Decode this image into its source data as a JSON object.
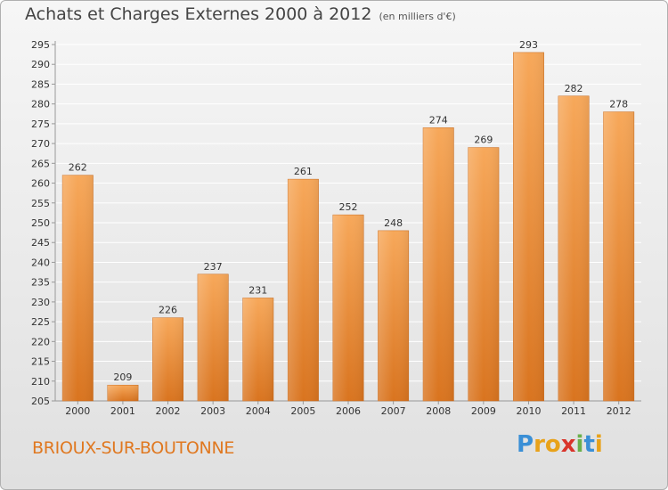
{
  "title": "Achats et Charges Externes 2000 à 2012",
  "subtitle": "(en milliers d'€)",
  "city": "BRIOUX-SUR-BOUTONNE",
  "logo": {
    "letters": [
      "P",
      "r",
      "o",
      "x",
      "i",
      "t",
      "i"
    ],
    "colors": [
      "#3a8fd6",
      "#e8a21a",
      "#e8a21a",
      "#d9342b",
      "#6ab04c",
      "#3a8fd6",
      "#e8a21a"
    ]
  },
  "colors": {
    "bar_top": "#f7a85a",
    "bar_bottom": "#d9741f",
    "grid": "#ffffff",
    "axis": "#999999"
  },
  "chart_data": {
    "type": "bar",
    "title": "Achats et Charges Externes 2000 à 2012",
    "subtitle": "(en milliers d'€)",
    "xlabel": "",
    "ylabel": "",
    "categories": [
      "2000",
      "2001",
      "2002",
      "2003",
      "2004",
      "2005",
      "2006",
      "2007",
      "2008",
      "2009",
      "2010",
      "2011",
      "2012"
    ],
    "values": [
      262,
      209,
      226,
      237,
      231,
      261,
      252,
      248,
      274,
      269,
      293,
      282,
      278
    ],
    "ylim": [
      205,
      295
    ],
    "yticks": [
      205,
      210,
      215,
      220,
      225,
      230,
      235,
      240,
      245,
      250,
      255,
      260,
      265,
      270,
      275,
      280,
      285,
      290,
      295
    ],
    "grid": true
  }
}
